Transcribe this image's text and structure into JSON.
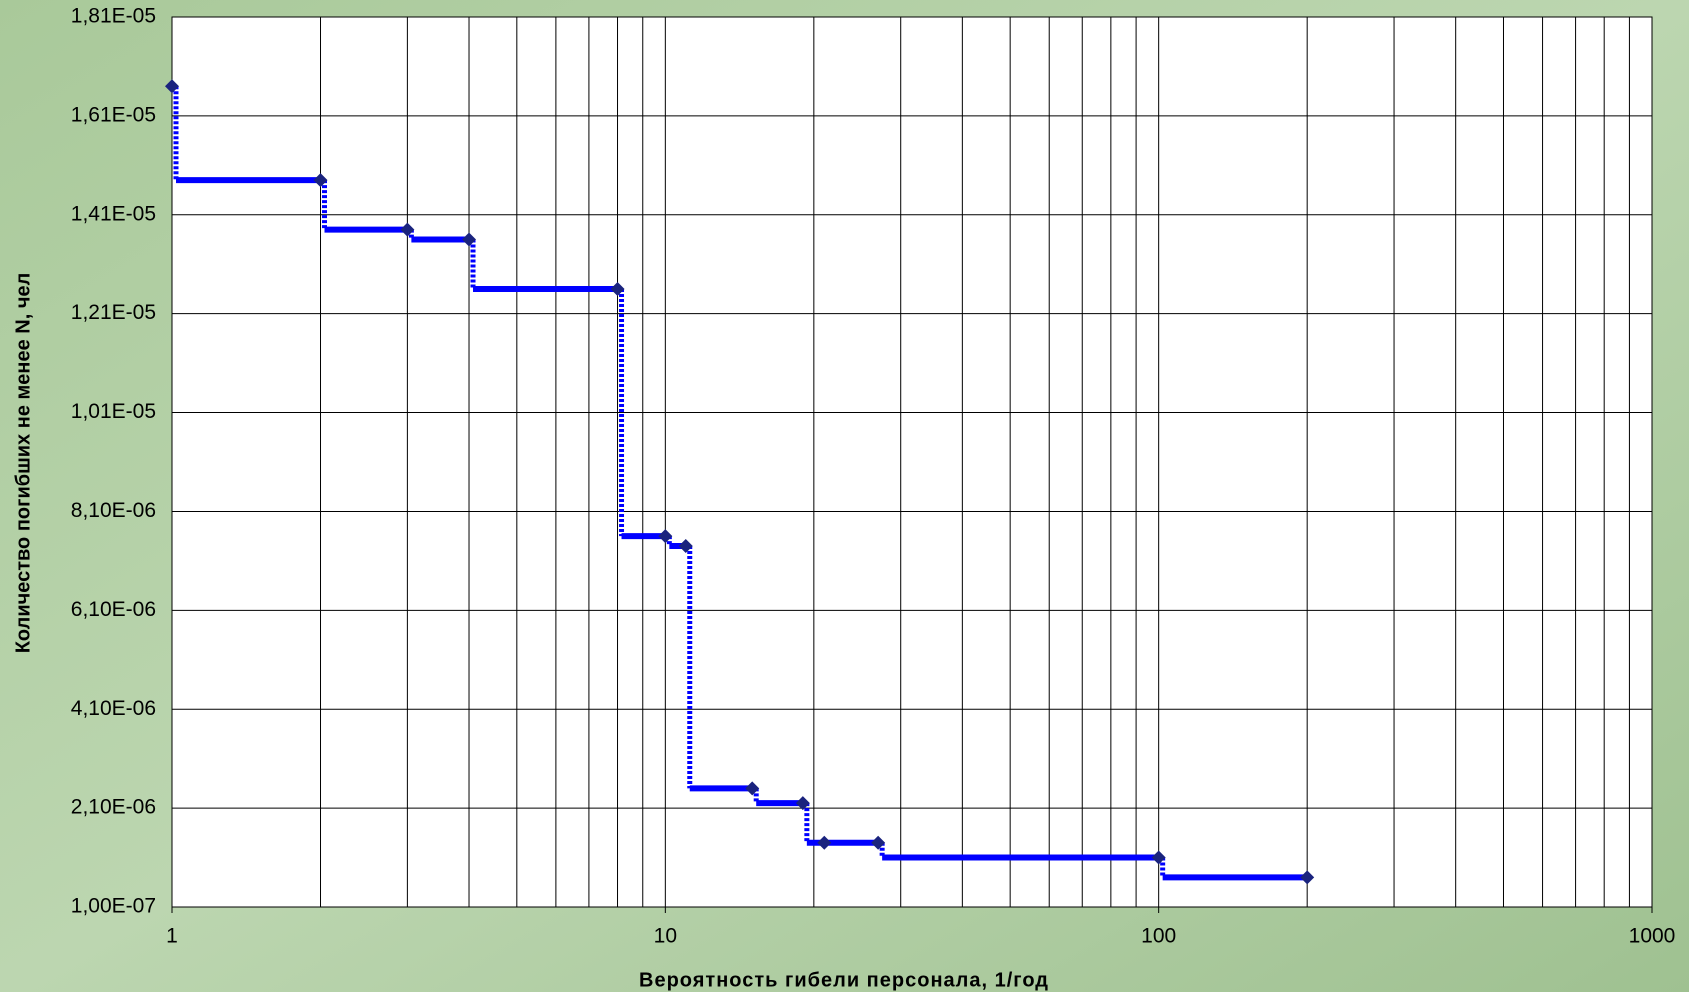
{
  "chart_data": {
    "type": "step",
    "xlabel": "Вероятность гибели персонала, 1/год",
    "ylabel": "Количество погибших не менее N, чел",
    "xscale": "log",
    "xlim": [
      1,
      1000
    ],
    "xticks": [
      1,
      10,
      100,
      1000
    ],
    "xminor_ticks": [
      2,
      3,
      4,
      5,
      6,
      7,
      8,
      9,
      20,
      30,
      40,
      50,
      60,
      70,
      80,
      90,
      200,
      300,
      400,
      500,
      600,
      700,
      800,
      900
    ],
    "ylim": [
      1e-07,
      1.81e-05
    ],
    "yticks": [
      {
        "value": 1e-07,
        "label": "1,00E-07"
      },
      {
        "value": 2.1e-06,
        "label": "2,10E-06"
      },
      {
        "value": 4.1e-06,
        "label": "4,10E-06"
      },
      {
        "value": 6.1e-06,
        "label": "6,10E-06"
      },
      {
        "value": 8.1e-06,
        "label": "8,10E-06"
      },
      {
        "value": 1.01e-05,
        "label": "1,01E-05"
      },
      {
        "value": 1.21e-05,
        "label": "1,21E-05"
      },
      {
        "value": 1.41e-05,
        "label": "1,41E-05"
      },
      {
        "value": 1.61e-05,
        "label": "1,61E-05"
      },
      {
        "value": 1.81e-05,
        "label": "1,81E-05"
      }
    ],
    "grid": true,
    "series": [
      {
        "color": "#0000ff",
        "marker_color": "#1a237e",
        "x": [
          1,
          2,
          3,
          4,
          8,
          10,
          11,
          15,
          19,
          21,
          27,
          100,
          200
        ],
        "values": [
          1.67e-05,
          1.48e-05,
          1.38e-05,
          1.36e-05,
          1.26e-05,
          7.6e-06,
          7.4e-06,
          2.5e-06,
          2.2e-06,
          1.4e-06,
          1.4e-06,
          1.1e-06,
          7e-07
        ]
      }
    ]
  }
}
